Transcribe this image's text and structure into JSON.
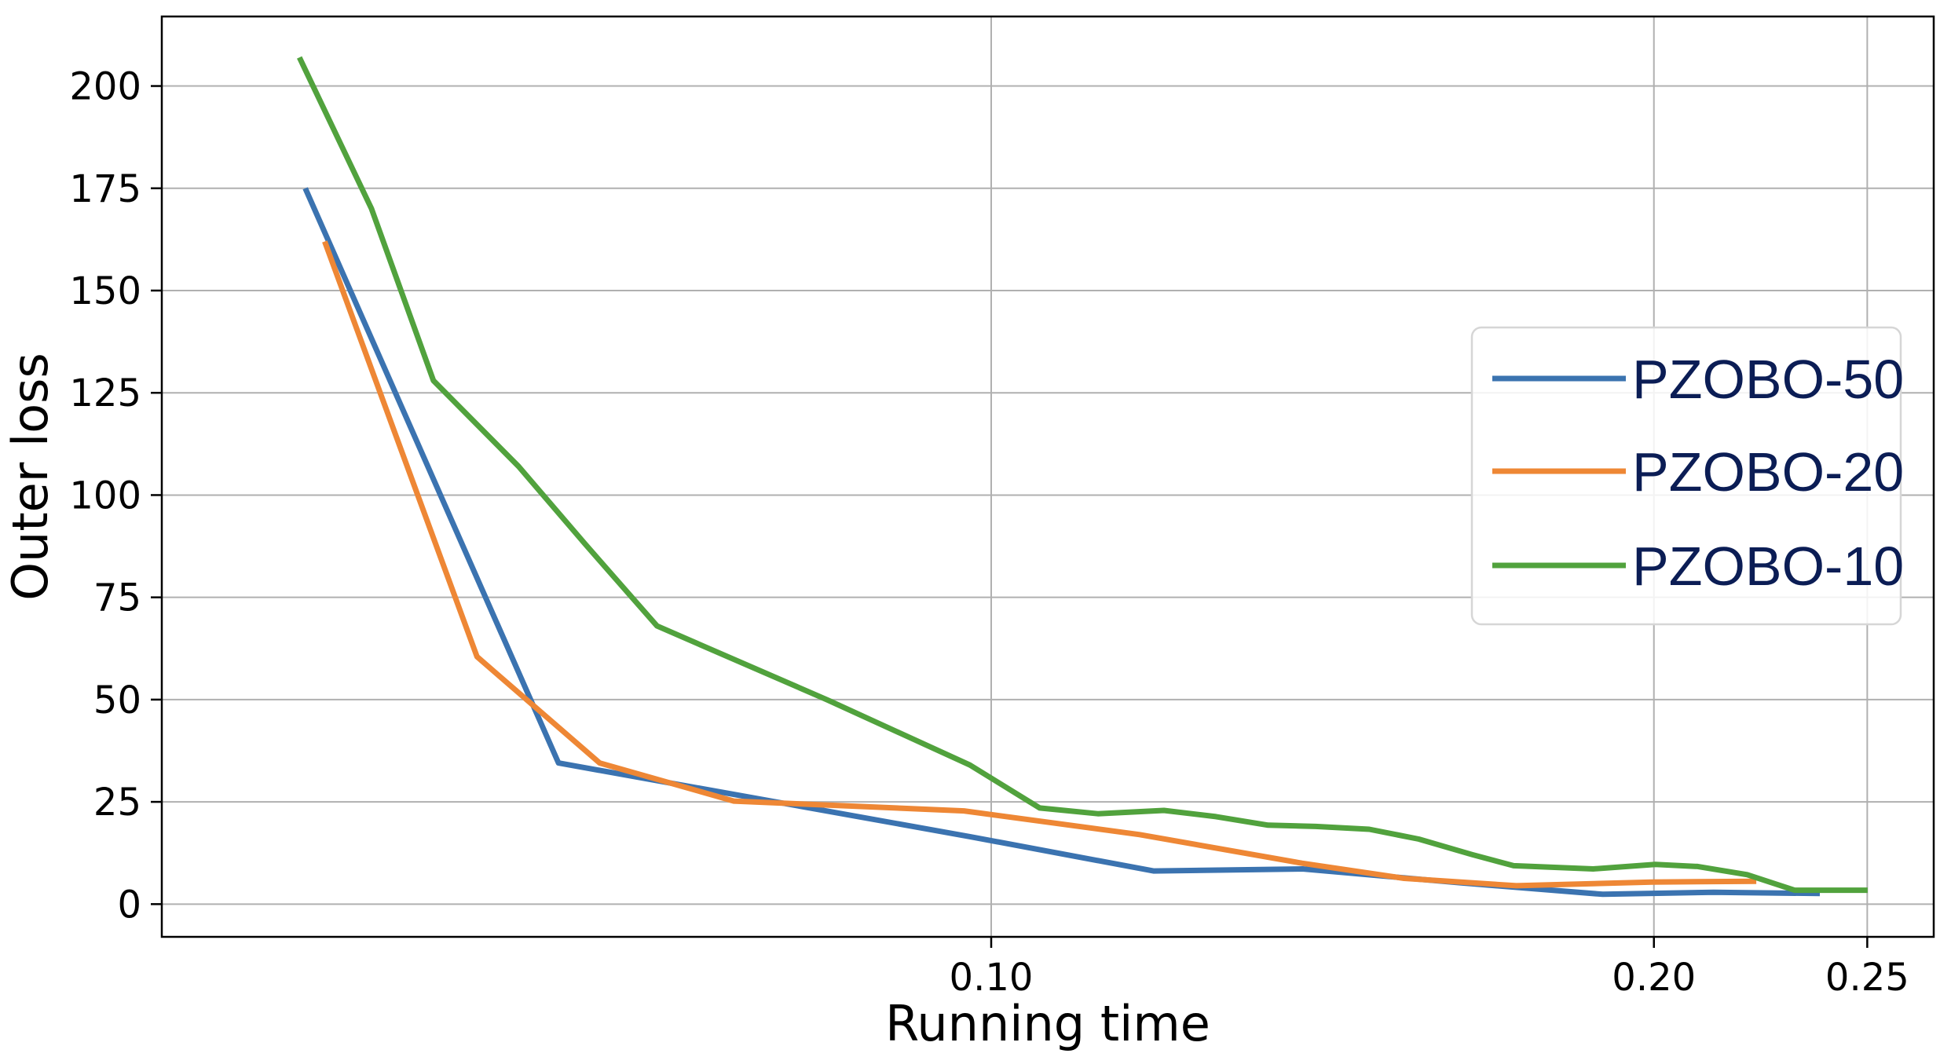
{
  "chart_data": {
    "type": "line",
    "xlabel": "Running time",
    "ylabel": "Outer loss",
    "xscale": "log",
    "xlim": [
      0.042,
      0.268
    ],
    "ylim": [
      -8,
      217
    ],
    "xticks": [
      {
        "value": 0.1,
        "label": "0.10"
      },
      {
        "value": 0.2,
        "label": "0.20"
      },
      {
        "value": 0.25,
        "label": "0.25"
      }
    ],
    "yticks": [
      {
        "value": 0,
        "label": "0"
      },
      {
        "value": 25,
        "label": "25"
      },
      {
        "value": 50,
        "label": "50"
      },
      {
        "value": 75,
        "label": "75"
      },
      {
        "value": 100,
        "label": "100"
      },
      {
        "value": 125,
        "label": "125"
      },
      {
        "value": 150,
        "label": "150"
      },
      {
        "value": 175,
        "label": "175"
      },
      {
        "value": 200,
        "label": "200"
      }
    ],
    "grid": true,
    "legend_position": "right",
    "series": [
      {
        "name": "PZOBO-50",
        "color": "#3b73b0",
        "x": [
          0.0488,
          0.0636,
          0.0978,
          0.1185,
          0.1385,
          0.1633,
          0.1896,
          0.2129,
          0.2379
        ],
        "y": [
          175,
          34.5,
          16.5,
          8.1,
          8.6,
          5.2,
          2.4,
          2.9,
          2.6
        ]
      },
      {
        "name": "PZOBO-20",
        "color": "#ee8735",
        "x": [
          0.0498,
          0.0584,
          0.0664,
          0.0764,
          0.0972,
          0.1168,
          0.1384,
          0.154,
          0.1732,
          0.1996,
          0.2226
        ],
        "y": [
          162,
          60.5,
          34.5,
          25.2,
          22.8,
          17.0,
          10.0,
          6.3,
          4.5,
          5.4,
          5.6
        ]
      },
      {
        "name": "PZOBO-10",
        "color": "#51a23d",
        "x": [
          0.0485,
          0.0523,
          0.0558,
          0.061,
          0.0654,
          0.0705,
          0.0842,
          0.0978,
          0.1052,
          0.1118,
          0.1198,
          0.1265,
          0.1336,
          0.1404,
          0.1485,
          0.1564,
          0.1654,
          0.1727,
          0.1877,
          0.2003,
          0.2094,
          0.2205,
          0.2317,
          0.2501
        ],
        "y": [
          207,
          170,
          128,
          107,
          88,
          68,
          50,
          34,
          23.5,
          22.1,
          22.9,
          21.4,
          19.3,
          19.0,
          18.3,
          15.9,
          12.1,
          9.4,
          8.6,
          9.7,
          9.2,
          7.2,
          3.4,
          3.4
        ]
      }
    ]
  }
}
